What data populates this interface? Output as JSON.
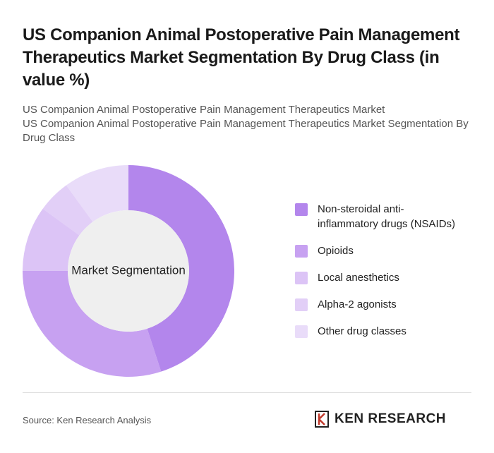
{
  "chart_data": {
    "type": "donut",
    "title": "US Companion Animal Postoperative Pain Management Therapeutics Market Segmentation By Drug Class (in value %)",
    "subtitle": [
      "US Companion Animal Postoperative Pain Management Therapeutics Market",
      "US Companion Animal Postoperative Pain Management Therapeutics Market Segmentation By Drug Class"
    ],
    "center_label": "Market Segmentation",
    "categories": [
      "Non-steroidal anti-inflammatory drugs (NSAIDs)",
      "Opioids",
      "Local anesthetics",
      "Alpha-2 agonists",
      "Other drug classes"
    ],
    "values": [
      45,
      30,
      10,
      5,
      10
    ],
    "colors": [
      "#b386ec",
      "#c7a1f1",
      "#dcc4f6",
      "#e2cff7",
      "#e9dcf9"
    ]
  },
  "source": "Source: Ken Research Analysis",
  "logo": "KEN RESEARCH"
}
